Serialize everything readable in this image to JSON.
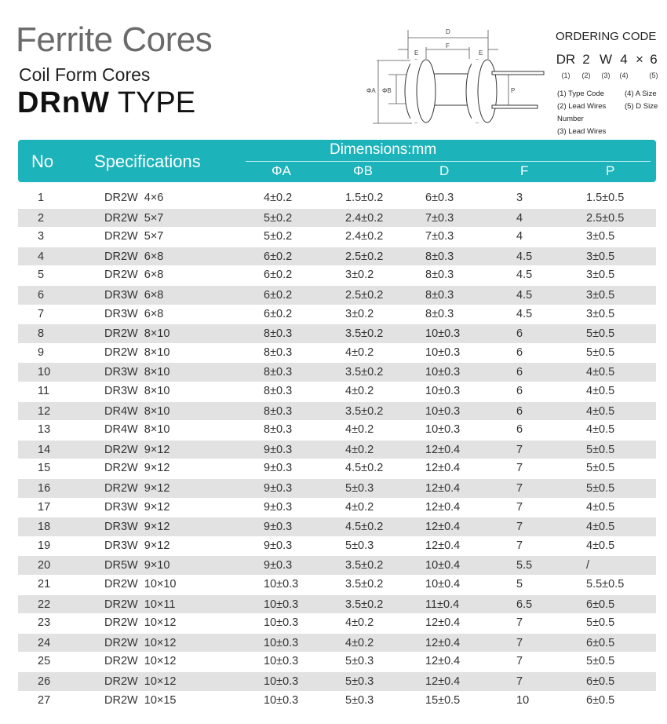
{
  "title": "Ferrite Cores",
  "subtitle": "Coil Form Cores",
  "type_bold": "DRnW",
  "type_rest": " TYPE",
  "diagram": {
    "labels": {
      "D": "D",
      "E1": "E",
      "F": "F",
      "E2": "E",
      "A": "ΦA",
      "B": "ΦB",
      "P": "P"
    }
  },
  "ordering": {
    "title": "ORDERING CODE",
    "code": [
      "DR",
      "2",
      "W",
      "4",
      "×",
      "6"
    ],
    "nums": [
      "(1)",
      "(2)",
      "(3)",
      "(4)",
      "",
      "(5)"
    ],
    "legend": [
      "(1) Type Code",
      "(4) A Size",
      "(2) Lead Wires Number",
      "(5) D Size",
      "(3) Lead Wires"
    ]
  },
  "table": {
    "headers": {
      "no": "No",
      "spec": "Specifications",
      "dims": "Dimensions:mm",
      "a": "ΦA",
      "b": "ΦB",
      "d": "D",
      "f": "F",
      "p": "P"
    },
    "rows": [
      [
        "1",
        "DR2W  4×6",
        "4±0.2",
        "1.5±0.2",
        "6±0.3",
        "3",
        "1.5±0.5"
      ],
      [
        "2",
        "DR2W  5×7",
        "5±0.2",
        "2.4±0.2",
        "7±0.3",
        "4",
        "2.5±0.5"
      ],
      [
        "3",
        "DR2W  5×7",
        "5±0.2",
        "2.4±0.2",
        "7±0.3",
        "4",
        "3±0.5"
      ],
      [
        "4",
        "DR2W  6×8",
        "6±0.2",
        "2.5±0.2",
        "8±0.3",
        "4.5",
        "3±0.5"
      ],
      [
        "5",
        "DR2W  6×8",
        "6±0.2",
        "3±0.2",
        "8±0.3",
        "4.5",
        "3±0.5"
      ],
      [
        "6",
        "DR3W  6×8",
        "6±0.2",
        "2.5±0.2",
        "8±0.3",
        "4.5",
        "3±0.5"
      ],
      [
        "7",
        "DR3W  6×8",
        "6±0.2",
        "3±0.2",
        "8±0.3",
        "4.5",
        "3±0.5"
      ],
      [
        "8",
        "DR2W  8×10",
        "8±0.3",
        "3.5±0.2",
        "10±0.3",
        "6",
        "5±0.5"
      ],
      [
        "9",
        "DR2W  8×10",
        "8±0.3",
        "4±0.2",
        "10±0.3",
        "6",
        "5±0.5"
      ],
      [
        "10",
        "DR3W  8×10",
        "8±0.3",
        "3.5±0.2",
        "10±0.3",
        "6",
        "4±0.5"
      ],
      [
        "11",
        "DR3W  8×10",
        "8±0.3",
        "4±0.2",
        "10±0.3",
        "6",
        "4±0.5"
      ],
      [
        "12",
        "DR4W  8×10",
        "8±0.3",
        "3.5±0.2",
        "10±0.3",
        "6",
        "4±0.5"
      ],
      [
        "13",
        "DR4W  8×10",
        "8±0.3",
        "4±0.2",
        "10±0.3",
        "6",
        "4±0.5"
      ],
      [
        "14",
        "DR2W  9×12",
        "9±0.3",
        "4±0.2",
        "12±0.4",
        "7",
        "5±0.5"
      ],
      [
        "15",
        "DR2W  9×12",
        "9±0.3",
        "4.5±0.2",
        "12±0.4",
        "7",
        "5±0.5"
      ],
      [
        "16",
        "DR2W  9×12",
        "9±0.3",
        "5±0.3",
        "12±0.4",
        "7",
        "5±0.5"
      ],
      [
        "17",
        "DR3W  9×12",
        "9±0.3",
        "4±0.2",
        "12±0.4",
        "7",
        "4±0.5"
      ],
      [
        "18",
        "DR3W  9×12",
        "9±0.3",
        "4.5±0.2",
        "12±0.4",
        "7",
        "4±0.5"
      ],
      [
        "19",
        "DR3W  9×12",
        "9±0.3",
        "5±0.3",
        "12±0.4",
        "7",
        "4±0.5"
      ],
      [
        "20",
        "DR5W  9×10",
        "9±0.3",
        "3.5±0.2",
        "10±0.4",
        "5.5",
        "/"
      ],
      [
        "21",
        "DR2W  10×10",
        "10±0.3",
        "3.5±0.2",
        "10±0.4",
        "5",
        "5.5±0.5"
      ],
      [
        "22",
        "DR2W  10×11",
        "10±0.3",
        "3.5±0.2",
        "11±0.4",
        "6.5",
        "6±0.5"
      ],
      [
        "23",
        "DR2W  10×12",
        "10±0.3",
        "4±0.2",
        "12±0.4",
        "7",
        "5±0.5"
      ],
      [
        "24",
        "DR2W  10×12",
        "10±0.3",
        "4±0.2",
        "12±0.4",
        "7",
        "6±0.5"
      ],
      [
        "25",
        "DR2W  10×12",
        "10±0.3",
        "5±0.3",
        "12±0.4",
        "7",
        "5±0.5"
      ],
      [
        "26",
        "DR2W  10×12",
        "10±0.3",
        "5±0.3",
        "12±0.4",
        "7",
        "6±0.5"
      ],
      [
        "27",
        "DR2W  10×15",
        "10±0.3",
        "5±0.3",
        "15±0.5",
        "10",
        "6±0.5"
      ]
    ]
  },
  "colors": {
    "header": "#1cb3bb",
    "alt_row": "#e2e2e2"
  }
}
